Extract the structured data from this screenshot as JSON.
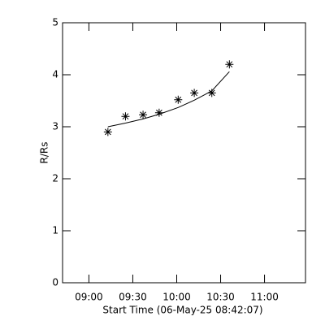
{
  "chart_data": {
    "type": "scatter",
    "x_label": "Start Time (06-May-25 08:42:07)",
    "y_label": "R/Rs",
    "x": [
      553,
      565,
      577,
      588,
      601,
      612,
      624,
      636
    ],
    "series": [
      {
        "values": [
          2.9,
          3.2,
          3.23,
          3.27,
          3.52,
          3.65,
          3.65,
          4.2
        ],
        "color": "#000000",
        "marker": "asterisk"
      },
      {
        "values": [
          3.0,
          3.07,
          3.15,
          3.24,
          3.37,
          3.51,
          3.69,
          4.06
        ],
        "color": "#000000",
        "style": "line"
      }
    ],
    "xlim": [
      522,
      688
    ],
    "xticks": [
      {
        "value": 540,
        "label": "09:00"
      },
      {
        "value": 570,
        "label": "09:30"
      },
      {
        "value": 600,
        "label": "10:00"
      },
      {
        "value": 630,
        "label": "10:30"
      },
      {
        "value": 660,
        "label": "11:00"
      }
    ],
    "ylim": [
      0,
      5
    ],
    "yticks": [
      0,
      1,
      2,
      3,
      4,
      5
    ]
  }
}
